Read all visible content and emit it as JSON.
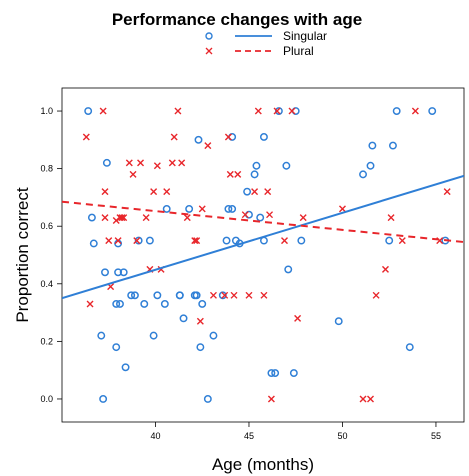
{
  "chart_data": {
    "type": "scatter",
    "title": "Performance changes with age",
    "xlabel": "Age (months)",
    "ylabel": "Proportion correct",
    "xlim": [
      35,
      56.5
    ],
    "ylim": [
      -0.08,
      1.08
    ],
    "x_ticks": [
      40,
      45,
      50,
      55
    ],
    "y_ticks": [
      0.0,
      0.2,
      0.4,
      0.6,
      0.8,
      1.0
    ],
    "x_tick_labels": [
      "40",
      "45",
      "50",
      "55"
    ],
    "y_tick_labels": [
      "0.0",
      "0.2",
      "0.4",
      "0.6",
      "0.8",
      "1.0"
    ],
    "grid": false,
    "legend_position": "top-center",
    "series": [
      {
        "name": "Singular",
        "marker": "circle",
        "color": "#2f7fd6",
        "points": [
          [
            36.4,
            1.0
          ],
          [
            36.6,
            0.63
          ],
          [
            36.7,
            0.54
          ],
          [
            37.1,
            0.22
          ],
          [
            37.2,
            0.0
          ],
          [
            37.3,
            0.44
          ],
          [
            37.4,
            0.82
          ],
          [
            37.9,
            0.18
          ],
          [
            37.9,
            0.33
          ],
          [
            38.0,
            0.54
          ],
          [
            38.0,
            0.44
          ],
          [
            38.1,
            0.33
          ],
          [
            38.3,
            0.44
          ],
          [
            38.4,
            0.11
          ],
          [
            38.7,
            0.36
          ],
          [
            38.9,
            0.36
          ],
          [
            39.1,
            0.55
          ],
          [
            39.4,
            0.33
          ],
          [
            39.7,
            0.55
          ],
          [
            39.9,
            0.22
          ],
          [
            40.1,
            0.36
          ],
          [
            40.5,
            0.33
          ],
          [
            40.6,
            0.66
          ],
          [
            41.3,
            0.36
          ],
          [
            41.3,
            0.36
          ],
          [
            41.5,
            0.28
          ],
          [
            41.8,
            0.66
          ],
          [
            42.1,
            0.36
          ],
          [
            42.2,
            0.36
          ],
          [
            42.3,
            0.9
          ],
          [
            42.4,
            0.18
          ],
          [
            42.5,
            0.33
          ],
          [
            42.8,
            0.0
          ],
          [
            43.1,
            0.22
          ],
          [
            43.6,
            0.36
          ],
          [
            43.8,
            0.55
          ],
          [
            43.9,
            0.66
          ],
          [
            44.1,
            0.91
          ],
          [
            44.1,
            0.66
          ],
          [
            44.3,
            0.55
          ],
          [
            44.5,
            0.54
          ],
          [
            44.9,
            0.72
          ],
          [
            45.0,
            0.64
          ],
          [
            45.3,
            0.78
          ],
          [
            45.4,
            0.81
          ],
          [
            45.6,
            0.63
          ],
          [
            45.8,
            0.55
          ],
          [
            45.8,
            0.91
          ],
          [
            46.2,
            0.09
          ],
          [
            46.4,
            0.09
          ],
          [
            46.6,
            1.0
          ],
          [
            47.0,
            0.81
          ],
          [
            47.1,
            0.45
          ],
          [
            47.4,
            0.09
          ],
          [
            47.5,
            1.0
          ],
          [
            47.8,
            0.55
          ],
          [
            49.8,
            0.27
          ],
          [
            51.1,
            0.78
          ],
          [
            51.5,
            0.81
          ],
          [
            51.6,
            0.88
          ],
          [
            52.5,
            0.55
          ],
          [
            52.7,
            0.88
          ],
          [
            52.9,
            1.0
          ],
          [
            53.6,
            0.18
          ],
          [
            54.8,
            1.0
          ],
          [
            55.5,
            0.55
          ]
        ]
      },
      {
        "name": "Plural",
        "marker": "x",
        "color": "#e8262b",
        "points": [
          [
            36.3,
            0.91
          ],
          [
            36.5,
            0.33
          ],
          [
            37.2,
            1.0
          ],
          [
            37.3,
            0.63
          ],
          [
            37.3,
            0.72
          ],
          [
            37.5,
            0.55
          ],
          [
            37.6,
            0.39
          ],
          [
            37.9,
            0.62
          ],
          [
            38.0,
            0.55
          ],
          [
            38.1,
            0.63
          ],
          [
            38.2,
            0.63
          ],
          [
            38.3,
            0.63
          ],
          [
            38.6,
            0.82
          ],
          [
            38.8,
            0.78
          ],
          [
            39.0,
            0.55
          ],
          [
            39.2,
            0.82
          ],
          [
            39.5,
            0.63
          ],
          [
            39.7,
            0.45
          ],
          [
            39.9,
            0.72
          ],
          [
            40.1,
            0.81
          ],
          [
            40.3,
            0.45
          ],
          [
            40.6,
            0.72
          ],
          [
            40.9,
            0.82
          ],
          [
            41.0,
            0.91
          ],
          [
            41.2,
            1.0
          ],
          [
            41.4,
            0.82
          ],
          [
            41.7,
            0.63
          ],
          [
            42.1,
            0.55
          ],
          [
            42.2,
            0.55
          ],
          [
            42.4,
            0.27
          ],
          [
            42.5,
            0.66
          ],
          [
            42.8,
            0.88
          ],
          [
            43.1,
            0.36
          ],
          [
            43.7,
            0.36
          ],
          [
            43.9,
            0.91
          ],
          [
            44.0,
            0.78
          ],
          [
            44.2,
            0.36
          ],
          [
            44.4,
            0.78
          ],
          [
            44.8,
            0.64
          ],
          [
            45.0,
            0.36
          ],
          [
            45.3,
            0.72
          ],
          [
            45.5,
            1.0
          ],
          [
            45.8,
            0.36
          ],
          [
            46.0,
            0.72
          ],
          [
            46.1,
            0.64
          ],
          [
            46.2,
            0.0
          ],
          [
            46.5,
            1.0
          ],
          [
            46.9,
            0.55
          ],
          [
            47.3,
            1.0
          ],
          [
            47.6,
            0.28
          ],
          [
            47.9,
            0.63
          ],
          [
            50.0,
            0.66
          ],
          [
            51.1,
            0.0
          ],
          [
            51.5,
            0.0
          ],
          [
            51.8,
            0.36
          ],
          [
            52.3,
            0.45
          ],
          [
            52.6,
            0.63
          ],
          [
            53.2,
            0.55
          ],
          [
            53.9,
            1.0
          ],
          [
            55.2,
            0.55
          ],
          [
            55.6,
            0.72
          ]
        ]
      }
    ],
    "trend_lines": [
      {
        "series": "Singular",
        "style": "solid",
        "color": "#2f7fd6",
        "x": [
          35,
          56.5
        ],
        "y": [
          0.35,
          0.775
        ]
      },
      {
        "series": "Plural",
        "style": "dashed",
        "color": "#e8262b",
        "x": [
          35,
          56.5
        ],
        "y": [
          0.685,
          0.545
        ]
      }
    ]
  }
}
